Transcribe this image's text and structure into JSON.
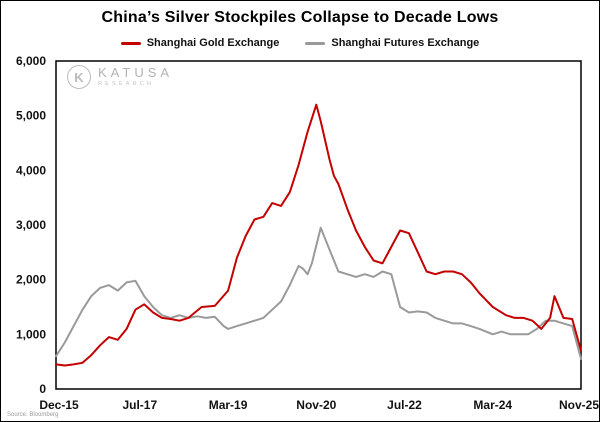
{
  "title": "China’s Silver Stockpiles Collapse to Decade Lows",
  "legend": [
    {
      "label": "Shanghai Gold Exchange",
      "color": "#c40000"
    },
    {
      "label": "Shanghai Futures Exchange",
      "color": "#9a9a9a"
    }
  ],
  "watermark": {
    "name": "KATUSA",
    "sub": "RESEARCH"
  },
  "source": "Source: Bloomberg",
  "chart_data": {
    "type": "line",
    "title": "China’s Silver Stockpiles Collapse to Decade Lows",
    "xlabel": "",
    "ylabel": "",
    "x_unit": "months since Dec-2015",
    "x_range": [
      0,
      119
    ],
    "y_range": [
      0,
      6000
    ],
    "grid": false,
    "legend_position": "top",
    "y_ticks": [
      {
        "v": 0,
        "label": "0"
      },
      {
        "v": 1000,
        "label": "1,000"
      },
      {
        "v": 2000,
        "label": "2,000"
      },
      {
        "v": 3000,
        "label": "3,000"
      },
      {
        "v": 4000,
        "label": "4,000"
      },
      {
        "v": 5000,
        "label": "5,000"
      },
      {
        "v": 6000,
        "label": "6,000"
      }
    ],
    "x_ticks": [
      {
        "v": 0,
        "label": "Dec-15"
      },
      {
        "v": 19,
        "label": "Jul-17"
      },
      {
        "v": 39,
        "label": "Mar-19"
      },
      {
        "v": 59,
        "label": "Nov-20"
      },
      {
        "v": 79,
        "label": "Jul-22"
      },
      {
        "v": 99,
        "label": "Mar-24"
      },
      {
        "v": 119,
        "label": "Nov-25"
      }
    ],
    "series": [
      {
        "name": "Shanghai Gold Exchange",
        "color": "#c40000",
        "points": [
          [
            0,
            450
          ],
          [
            2,
            430
          ],
          [
            4,
            450
          ],
          [
            6,
            480
          ],
          [
            8,
            620
          ],
          [
            10,
            800
          ],
          [
            12,
            950
          ],
          [
            14,
            900
          ],
          [
            16,
            1100
          ],
          [
            18,
            1450
          ],
          [
            20,
            1550
          ],
          [
            22,
            1400
          ],
          [
            24,
            1300
          ],
          [
            26,
            1280
          ],
          [
            28,
            1250
          ],
          [
            30,
            1300
          ],
          [
            33,
            1500
          ],
          [
            36,
            1520
          ],
          [
            39,
            1800
          ],
          [
            41,
            2400
          ],
          [
            43,
            2800
          ],
          [
            45,
            3100
          ],
          [
            47,
            3150
          ],
          [
            49,
            3400
          ],
          [
            51,
            3350
          ],
          [
            53,
            3600
          ],
          [
            55,
            4100
          ],
          [
            57,
            4700
          ],
          [
            59,
            5200
          ],
          [
            60,
            4900
          ],
          [
            62,
            4200
          ],
          [
            63,
            3900
          ],
          [
            64,
            3750
          ],
          [
            66,
            3300
          ],
          [
            68,
            2900
          ],
          [
            70,
            2600
          ],
          [
            72,
            2350
          ],
          [
            74,
            2300
          ],
          [
            76,
            2600
          ],
          [
            78,
            2900
          ],
          [
            80,
            2850
          ],
          [
            82,
            2500
          ],
          [
            84,
            2150
          ],
          [
            86,
            2100
          ],
          [
            88,
            2150
          ],
          [
            90,
            2150
          ],
          [
            92,
            2100
          ],
          [
            94,
            1950
          ],
          [
            96,
            1750
          ],
          [
            99,
            1500
          ],
          [
            102,
            1350
          ],
          [
            104,
            1300
          ],
          [
            106,
            1300
          ],
          [
            108,
            1250
          ],
          [
            110,
            1100
          ],
          [
            112,
            1300
          ],
          [
            113,
            1700
          ],
          [
            115,
            1300
          ],
          [
            117,
            1280
          ],
          [
            119,
            700
          ]
        ]
      },
      {
        "name": "Shanghai Futures Exchange",
        "color": "#9a9a9a",
        "points": [
          [
            0,
            600
          ],
          [
            2,
            850
          ],
          [
            4,
            1150
          ],
          [
            6,
            1450
          ],
          [
            8,
            1700
          ],
          [
            10,
            1850
          ],
          [
            12,
            1900
          ],
          [
            14,
            1800
          ],
          [
            16,
            1950
          ],
          [
            18,
            1980
          ],
          [
            20,
            1700
          ],
          [
            22,
            1500
          ],
          [
            24,
            1350
          ],
          [
            26,
            1300
          ],
          [
            28,
            1350
          ],
          [
            30,
            1300
          ],
          [
            32,
            1330
          ],
          [
            34,
            1300
          ],
          [
            36,
            1320
          ],
          [
            38,
            1150
          ],
          [
            39,
            1100
          ],
          [
            41,
            1150
          ],
          [
            43,
            1200
          ],
          [
            45,
            1250
          ],
          [
            47,
            1300
          ],
          [
            49,
            1450
          ],
          [
            51,
            1600
          ],
          [
            53,
            1900
          ],
          [
            55,
            2250
          ],
          [
            56,
            2200
          ],
          [
            57,
            2100
          ],
          [
            58,
            2300
          ],
          [
            60,
            2950
          ],
          [
            62,
            2550
          ],
          [
            64,
            2150
          ],
          [
            66,
            2100
          ],
          [
            68,
            2050
          ],
          [
            70,
            2100
          ],
          [
            72,
            2050
          ],
          [
            74,
            2150
          ],
          [
            76,
            2100
          ],
          [
            78,
            1500
          ],
          [
            80,
            1400
          ],
          [
            82,
            1420
          ],
          [
            84,
            1400
          ],
          [
            86,
            1300
          ],
          [
            88,
            1250
          ],
          [
            90,
            1200
          ],
          [
            92,
            1200
          ],
          [
            94,
            1150
          ],
          [
            96,
            1100
          ],
          [
            99,
            1000
          ],
          [
            101,
            1050
          ],
          [
            103,
            1000
          ],
          [
            105,
            1000
          ],
          [
            107,
            1000
          ],
          [
            109,
            1100
          ],
          [
            111,
            1250
          ],
          [
            113,
            1250
          ],
          [
            115,
            1200
          ],
          [
            117,
            1150
          ],
          [
            119,
            550
          ]
        ]
      }
    ]
  }
}
